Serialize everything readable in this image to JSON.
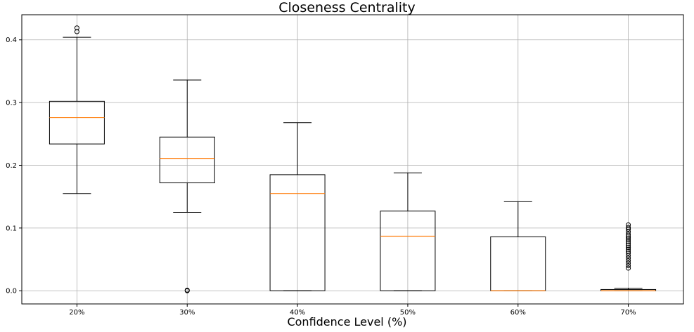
{
  "chart_data": {
    "type": "box",
    "title": "Closeness Centrality",
    "xlabel": "Confidence Level (%)",
    "ylabel": "",
    "ylim": [
      -0.021,
      0.44
    ],
    "yticks": [
      0.0,
      0.1,
      0.2,
      0.3,
      0.4
    ],
    "ytick_labels": [
      "0.0",
      "0.1",
      "0.2",
      "0.3",
      "0.4"
    ],
    "grid": true,
    "categories": [
      "20%",
      "30%",
      "40%",
      "50%",
      "60%",
      "70%"
    ],
    "boxes": [
      {
        "category": "20%",
        "whisker_low": 0.155,
        "q1": 0.234,
        "median": 0.276,
        "q3": 0.302,
        "whisker_high": 0.404,
        "outliers": [
          0.413,
          0.419
        ]
      },
      {
        "category": "30%",
        "whisker_low": 0.125,
        "q1": 0.172,
        "median": 0.211,
        "q3": 0.245,
        "whisker_high": 0.336,
        "outliers": [
          0.0,
          0.001
        ]
      },
      {
        "category": "40%",
        "whisker_low": 0.0,
        "q1": 0.0,
        "median": 0.155,
        "q3": 0.185,
        "whisker_high": 0.268,
        "outliers": []
      },
      {
        "category": "50%",
        "whisker_low": 0.0,
        "q1": 0.0,
        "median": 0.087,
        "q3": 0.127,
        "whisker_high": 0.188,
        "outliers": []
      },
      {
        "category": "60%",
        "whisker_low": 0.0,
        "q1": 0.0,
        "median": 0.0,
        "q3": 0.086,
        "whisker_high": 0.142,
        "outliers": []
      },
      {
        "category": "70%",
        "whisker_low": 0.0,
        "q1": 0.0,
        "median": 0.0,
        "q3": 0.002,
        "whisker_high": 0.004,
        "outliers": [
          0.036,
          0.04,
          0.044,
          0.048,
          0.052,
          0.056,
          0.06,
          0.063,
          0.066,
          0.069,
          0.072,
          0.075,
          0.078,
          0.081,
          0.084,
          0.087,
          0.09,
          0.094,
          0.098,
          0.101,
          0.105
        ]
      }
    ]
  },
  "colors": {
    "box": "#000000",
    "median": "#ff7f0e",
    "grid": "#b0b0b0",
    "background": "#ffffff"
  }
}
